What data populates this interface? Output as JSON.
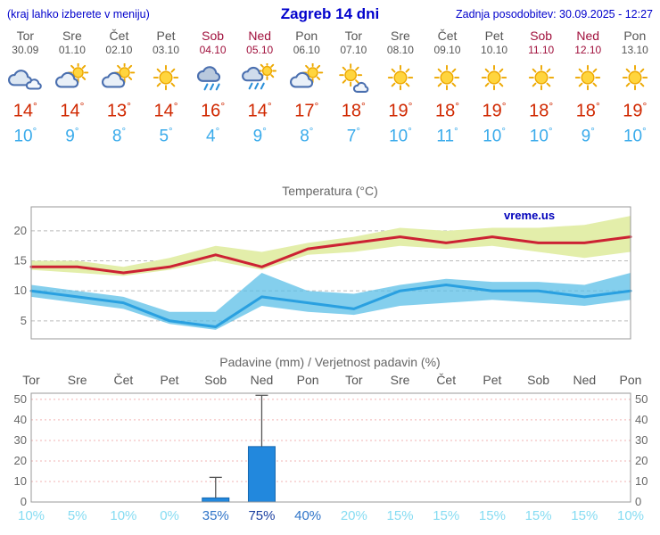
{
  "header": {
    "left_note": "(kraj lahko izberete v meniju)",
    "title": "Zagreb 14 dni",
    "last_update": "Zadnja posodobitev: 30.09.2025 - 12:27"
  },
  "colors": {
    "accent_blue": "#0000cc",
    "weekday_text": "#555555",
    "weekend_text": "#a0103c",
    "temp_high": "#d02800",
    "temp_low": "#3aabeb"
  },
  "days": [
    {
      "name": "Tor",
      "date": "30.09",
      "weekend": false,
      "icon": "cloudy",
      "tmax": 14,
      "tmin": 10
    },
    {
      "name": "Sre",
      "date": "01.10",
      "weekend": false,
      "icon": "partly-cloudy",
      "tmax": 14,
      "tmin": 9
    },
    {
      "name": "Čet",
      "date": "02.10",
      "weekend": false,
      "icon": "partly-cloudy",
      "tmax": 13,
      "tmin": 8
    },
    {
      "name": "Pet",
      "date": "03.10",
      "weekend": false,
      "icon": "sunny",
      "tmax": 14,
      "tmin": 5
    },
    {
      "name": "Sob",
      "date": "04.10",
      "weekend": true,
      "icon": "rain",
      "tmax": 16,
      "tmin": 4
    },
    {
      "name": "Ned",
      "date": "05.10",
      "weekend": true,
      "icon": "rain-sun",
      "tmax": 14,
      "tmin": 9
    },
    {
      "name": "Pon",
      "date": "06.10",
      "weekend": false,
      "icon": "partly-cloudy",
      "tmax": 17,
      "tmin": 8
    },
    {
      "name": "Tor",
      "date": "07.10",
      "weekend": false,
      "icon": "mostly-sunny",
      "tmax": 18,
      "tmin": 7
    },
    {
      "name": "Sre",
      "date": "08.10",
      "weekend": false,
      "icon": "sunny",
      "tmax": 19,
      "tmin": 10
    },
    {
      "name": "Čet",
      "date": "09.10",
      "weekend": false,
      "icon": "sunny",
      "tmax": 18,
      "tmin": 11
    },
    {
      "name": "Pet",
      "date": "10.10",
      "weekend": false,
      "icon": "sunny",
      "tmax": 19,
      "tmin": 10
    },
    {
      "name": "Sob",
      "date": "11.10",
      "weekend": true,
      "icon": "sunny",
      "tmax": 18,
      "tmin": 10
    },
    {
      "name": "Ned",
      "date": "12.10",
      "weekend": true,
      "icon": "sunny",
      "tmax": 18,
      "tmin": 9
    },
    {
      "name": "Pon",
      "date": "13.10",
      "weekend": false,
      "icon": "sunny",
      "tmax": 19,
      "tmin": 10
    }
  ],
  "chart_data": [
    {
      "type": "area",
      "title": "Temperatura (°C)",
      "watermark": "vreme.us",
      "x": [
        "Tor",
        "Sre",
        "Čet",
        "Pet",
        "Sob",
        "Ned",
        "Pon",
        "Tor",
        "Sre",
        "Čet",
        "Pet",
        "Sob",
        "Ned",
        "Pon"
      ],
      "ylim": [
        2,
        24
      ],
      "yticks": [
        5,
        10,
        15,
        20
      ],
      "grid": true,
      "series": [
        {
          "name": "tmax",
          "color": "#cc2233",
          "values": [
            14,
            14,
            13,
            14,
            16,
            14,
            17,
            18,
            19,
            18,
            19,
            18,
            18,
            19
          ]
        },
        {
          "name": "tmin",
          "color": "#2aa0e0",
          "values": [
            10,
            9,
            8,
            5,
            4,
            9,
            8,
            7,
            10,
            11,
            10,
            10,
            9,
            10
          ]
        }
      ],
      "bands": [
        {
          "name": "tmax-range",
          "fill": "#e3eeaa",
          "opacity": 1,
          "upper": [
            15,
            15,
            14,
            15.5,
            17.5,
            16.5,
            18,
            19,
            20.5,
            20,
            20.5,
            20.5,
            21,
            22.5
          ],
          "lower": [
            13.5,
            13,
            12.5,
            13.5,
            15,
            13.5,
            16,
            16.5,
            17.5,
            17,
            17.5,
            16.5,
            15.5,
            16.5
          ]
        },
        {
          "name": "tmin-range",
          "fill": "#55bde6",
          "opacity": 0.72,
          "upper": [
            11,
            10,
            9,
            6.5,
            6.5,
            13,
            10,
            9.5,
            11,
            12,
            11.5,
            11.5,
            11,
            13
          ],
          "lower": [
            9,
            8,
            7,
            4.5,
            3.5,
            7.5,
            6.5,
            6,
            7.5,
            8,
            8.5,
            8,
            7.5,
            8.5
          ]
        }
      ]
    },
    {
      "type": "bar",
      "title": "Padavine (mm) / Verjetnost padavin (%)",
      "x": [
        "Tor",
        "Sre",
        "Čet",
        "Pet",
        "Sob",
        "Ned",
        "Pon",
        "Tor",
        "Sre",
        "Čet",
        "Pet",
        "Sob",
        "Ned",
        "Pon"
      ],
      "x_weekend": [
        false,
        false,
        false,
        false,
        true,
        true,
        false,
        false,
        false,
        false,
        false,
        true,
        true,
        false
      ],
      "ylim": [
        0,
        53
      ],
      "yticks": [
        0,
        10,
        20,
        30,
        40,
        50
      ],
      "grid": true,
      "bar_color": "#2288dd",
      "values": [
        0,
        0,
        0,
        0,
        2,
        27,
        0,
        0,
        0,
        0,
        0,
        0,
        0,
        0
      ],
      "whiskers": [
        null,
        null,
        null,
        null,
        {
          "low": 0,
          "high": 12
        },
        {
          "low": 5,
          "high": 52
        },
        null,
        null,
        null,
        null,
        null,
        null,
        null,
        null
      ],
      "probabilities": [
        10,
        5,
        10,
        0,
        35,
        75,
        40,
        20,
        15,
        15,
        15,
        15,
        15,
        10
      ],
      "probability_unit": "%"
    }
  ]
}
